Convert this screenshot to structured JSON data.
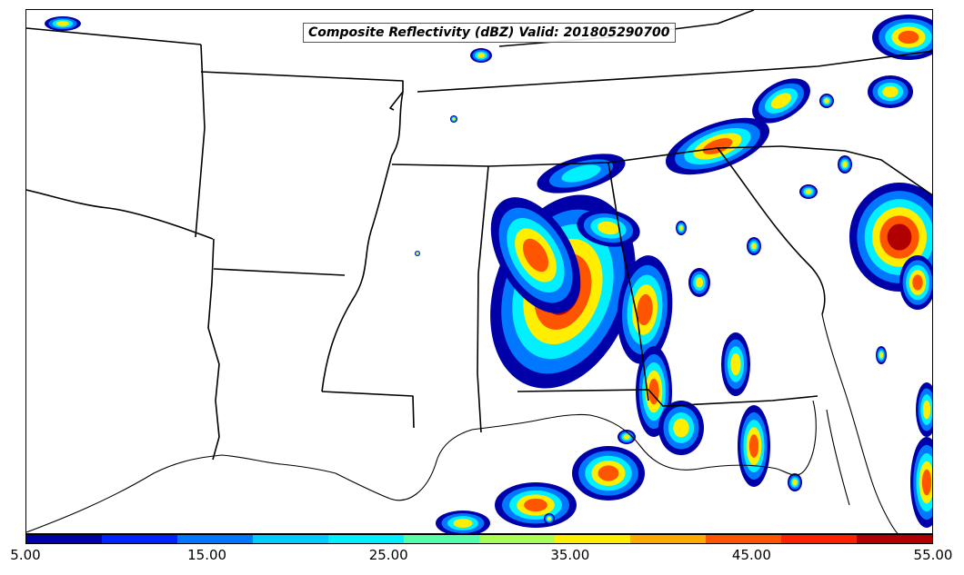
{
  "title": "Composite Reflectivity (dBZ) Valid: 201805290700",
  "colorbar": {
    "colors": [
      "#0000a8",
      "#0022ff",
      "#0077ff",
      "#00ccff",
      "#00f0ff",
      "#55ffaa",
      "#aaff55",
      "#ffee00",
      "#ffaa00",
      "#ff5500",
      "#ff2000",
      "#b00000"
    ],
    "labels": [
      "5.00",
      "15.00",
      "25.00",
      "35.00",
      "45.00",
      "55.00"
    ]
  }
}
